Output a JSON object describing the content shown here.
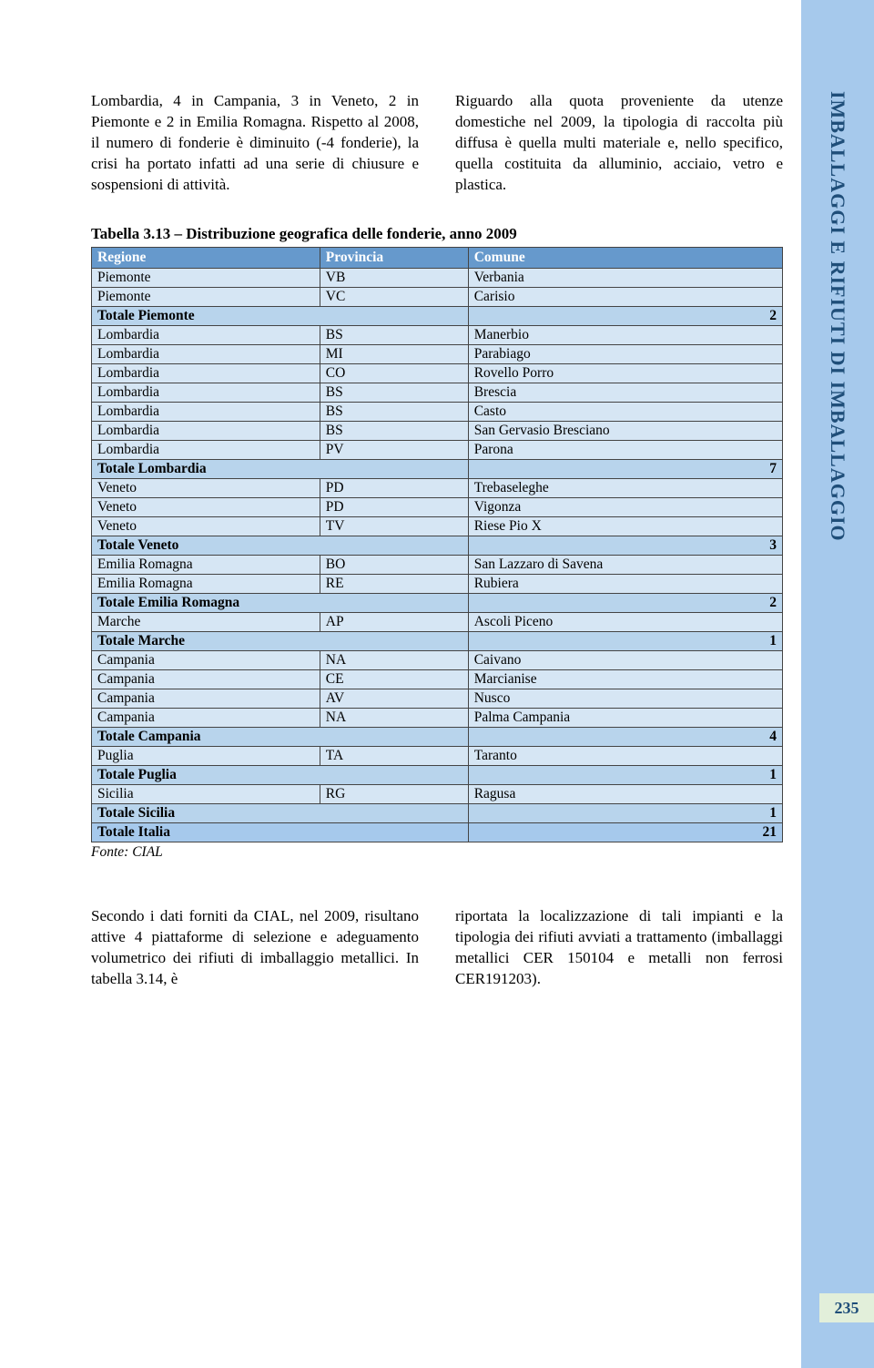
{
  "sidebar": {
    "label": "IMBALLAGGI E RIFIUTI DI IMBALLAGGIO",
    "bg_color": "#a6c9ec",
    "text_color": "#1f4e79"
  },
  "page_number": "235",
  "intro": {
    "left": "Lombardia, 4 in Campania, 3 in Veneto, 2 in Piemonte e 2 in Emilia Romagna. Rispetto al 2008, il numero di fonderie è diminuito (-4 fonderie), la crisi ha portato infatti ad una serie di chiusure e sospensioni di attività.",
    "right": "Riguardo alla quota proveniente da utenze domestiche nel 2009, la tipologia di raccolta più diffusa è quella multi materiale e, nello specifico, quella costituita da alluminio, acciaio, vetro e plastica."
  },
  "table": {
    "title": "Tabella 3.13 – Distribuzione geografica delle fonderie, anno 2009",
    "columns": [
      "Regione",
      "Provincia",
      "Comune"
    ],
    "header_bg": "#6699cc",
    "header_fg": "#ffffff",
    "row_bg": "#d6e6f4",
    "total_bg": "#b8d4ec",
    "grand_bg": "#a6c9ec",
    "border_color": "#444444",
    "rows": [
      {
        "type": "data",
        "c": [
          "Piemonte",
          "VB",
          "Verbania"
        ]
      },
      {
        "type": "data",
        "c": [
          "Piemonte",
          "VC",
          "Carisio"
        ]
      },
      {
        "type": "total",
        "label": "Totale Piemonte",
        "value": "2"
      },
      {
        "type": "data",
        "c": [
          "Lombardia",
          "BS",
          "Manerbio"
        ]
      },
      {
        "type": "data",
        "c": [
          "Lombardia",
          "MI",
          "Parabiago"
        ]
      },
      {
        "type": "data",
        "c": [
          "Lombardia",
          "CO",
          "Rovello Porro"
        ]
      },
      {
        "type": "data",
        "c": [
          "Lombardia",
          "BS",
          "Brescia"
        ]
      },
      {
        "type": "data",
        "c": [
          "Lombardia",
          "BS",
          "Casto"
        ]
      },
      {
        "type": "data",
        "c": [
          "Lombardia",
          "BS",
          "San Gervasio Bresciano"
        ]
      },
      {
        "type": "data",
        "c": [
          "Lombardia",
          "PV",
          "Parona"
        ]
      },
      {
        "type": "total",
        "label": "Totale Lombardia",
        "value": "7"
      },
      {
        "type": "data",
        "c": [
          "Veneto",
          "PD",
          "Trebaseleghe"
        ]
      },
      {
        "type": "data",
        "c": [
          "Veneto",
          "PD",
          "Vigonza"
        ]
      },
      {
        "type": "data",
        "c": [
          "Veneto",
          "TV",
          "Riese Pio X"
        ]
      },
      {
        "type": "total",
        "label": "Totale Veneto",
        "value": "3"
      },
      {
        "type": "data",
        "c": [
          "Emilia Romagna",
          "BO",
          "San Lazzaro di Savena"
        ]
      },
      {
        "type": "data",
        "c": [
          "Emilia Romagna",
          "RE",
          "Rubiera"
        ]
      },
      {
        "type": "total",
        "label": "Totale Emilia Romagna",
        "value": "2"
      },
      {
        "type": "data",
        "c": [
          "Marche",
          "AP",
          "Ascoli Piceno"
        ]
      },
      {
        "type": "total",
        "label": "Totale Marche",
        "value": "1"
      },
      {
        "type": "data",
        "c": [
          "Campania",
          "NA",
          "Caivano"
        ]
      },
      {
        "type": "data",
        "c": [
          "Campania",
          "CE",
          "Marcianise"
        ]
      },
      {
        "type": "data",
        "c": [
          "Campania",
          "AV",
          "Nusco"
        ]
      },
      {
        "type": "data",
        "c": [
          "Campania",
          "NA",
          "Palma Campania"
        ]
      },
      {
        "type": "total",
        "label": "Totale Campania",
        "value": "4"
      },
      {
        "type": "data",
        "c": [
          "Puglia",
          "TA",
          "Taranto"
        ]
      },
      {
        "type": "total",
        "label": "Totale Puglia",
        "value": "1"
      },
      {
        "type": "data",
        "c": [
          "Sicilia",
          "RG",
          "Ragusa"
        ]
      },
      {
        "type": "total",
        "label": "Totale Sicilia",
        "value": "1"
      },
      {
        "type": "grand",
        "label": "Totale Italia",
        "value": "21"
      }
    ],
    "source": "Fonte: CIAL"
  },
  "outro": {
    "left": "Secondo i dati forniti da CIAL, nel 2009, risultano attive 4 piattaforme di selezione e adeguamento volumetrico dei rifiuti di imballaggio metallici. In tabella 3.14, è",
    "right": "riportata la localizzazione di tali impianti e la tipologia dei rifiuti avviati a trattamento (imballaggi metallici CER 150104 e metalli non ferrosi CER191203)."
  }
}
